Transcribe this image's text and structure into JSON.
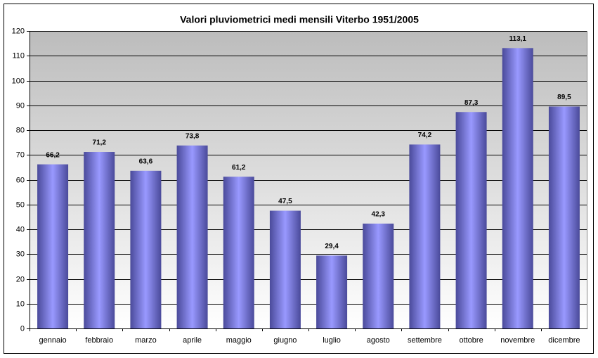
{
  "chart_data": {
    "type": "bar",
    "title": "Valori pluviometrici medi mensili Viterbo 1951/2005",
    "categories": [
      "gennaio",
      "febbraio",
      "marzo",
      "aprile",
      "maggio",
      "giugno",
      "luglio",
      "agosto",
      "settembre",
      "ottobre",
      "novembre",
      "dicembre"
    ],
    "values": [
      66.2,
      71.2,
      63.6,
      73.8,
      61.2,
      47.5,
      29.4,
      42.3,
      74.2,
      87.3,
      113.1,
      89.5
    ],
    "value_labels": [
      "66,2",
      "71,2",
      "63,6",
      "73,8",
      "61,2",
      "47,5",
      "29,4",
      "42,3",
      "74,2",
      "87,3",
      "113,1",
      "89,5"
    ],
    "color": "#9999ff",
    "ylim": [
      0,
      120
    ],
    "yticks": [
      0,
      10,
      20,
      30,
      40,
      50,
      60,
      70,
      80,
      90,
      100,
      110,
      120
    ],
    "grid": true
  }
}
